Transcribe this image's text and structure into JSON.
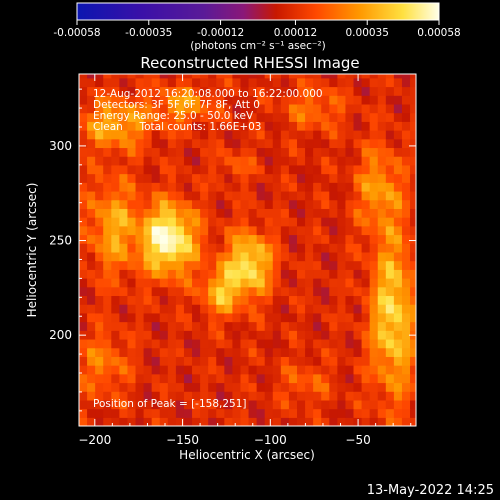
{
  "chart_data": {
    "type": "heatmap",
    "title": "Reconstructed RHESSI Image",
    "xlabel": "Heliocentric X (arcsec)",
    "ylabel": "Heliocentric Y (arcsec)",
    "xlim": [
      -209,
      -17
    ],
    "ylim": [
      152,
      338
    ],
    "xticks": [
      -200,
      -150,
      -100,
      -50
    ],
    "yticks": [
      200,
      250,
      300
    ],
    "colorbar": {
      "label": "(photons cm⁻² s⁻¹ asec⁻²)",
      "range": [
        -0.00058,
        0.00058
      ],
      "tick_values": [
        -0.00058,
        -0.00035,
        -0.00012,
        0.00012,
        0.00035,
        0.00058
      ],
      "tick_labels": [
        "-0.00058",
        "-0.00035",
        "-0.00012",
        "0.00012",
        "0.00035",
        "0.00058"
      ],
      "colormap": [
        "#0b16b0",
        "#3a10a8",
        "#5a1a98",
        "#8a1878",
        "#c81800",
        "#ff4800",
        "#ff9800",
        "#ffe040",
        "#ffffe8"
      ]
    },
    "annotations": [
      "12-Aug-2012 16:20:08.000 to 16:22:00.000",
      "Detectors: 3F 5F 6F 7F 8F, Att 0",
      "Energy Range: 25.0 - 50.0 keV",
      "Clean     Total counts: 1.66E+03"
    ],
    "peak_label": "Position of Peak = [-158,251]",
    "peak": [
      -158,
      251
    ],
    "sources": [
      {
        "x": -158,
        "y": 251,
        "sx": 11,
        "sy": 13,
        "amp": 1.0
      },
      {
        "x": -112,
        "y": 238,
        "sx": 9,
        "sy": 12,
        "amp": 0.78
      },
      {
        "x": -128,
        "y": 223,
        "sx": 8,
        "sy": 9,
        "amp": 0.55
      },
      {
        "x": -188,
        "y": 312,
        "sx": 14,
        "sy": 9,
        "amp": 0.55
      },
      {
        "x": -150,
        "y": 322,
        "sx": 12,
        "sy": 7,
        "amp": 0.45
      },
      {
        "x": -190,
        "y": 258,
        "sx": 10,
        "sy": 18,
        "amp": 0.5
      },
      {
        "x": -30,
        "y": 210,
        "sx": 9,
        "sy": 30,
        "amp": 0.72
      },
      {
        "x": -38,
        "y": 278,
        "sx": 9,
        "sy": 16,
        "amp": 0.45
      },
      {
        "x": -75,
        "y": 320,
        "sx": 12,
        "sy": 8,
        "amp": 0.32
      },
      {
        "x": -195,
        "y": 185,
        "sx": 10,
        "sy": 12,
        "amp": 0.35
      },
      {
        "x": -80,
        "y": 175,
        "sx": 10,
        "sy": 8,
        "amp": 0.25
      },
      {
        "x": -120,
        "y": 290,
        "sx": 8,
        "sy": 6,
        "amp": 0.22
      }
    ]
  },
  "footer": {
    "timestamp": "13-May-2022 14:25"
  }
}
